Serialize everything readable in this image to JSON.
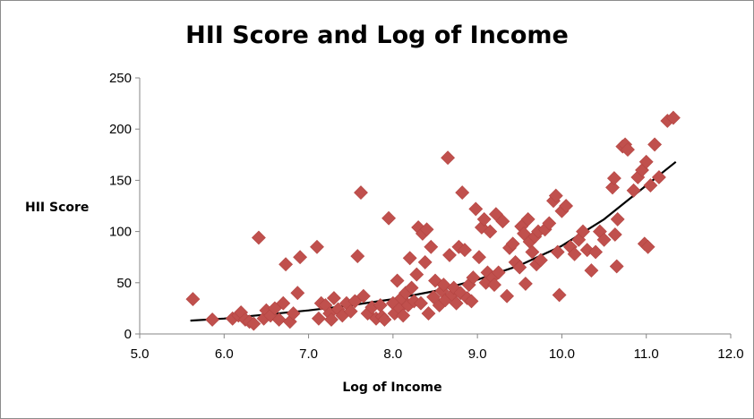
{
  "chart_data": {
    "type": "scatter",
    "title": "HII Score and Log of Income",
    "xlabel": "Log of Income",
    "ylabel": "HII Score",
    "xlim": [
      5.0,
      12.0
    ],
    "ylim": [
      0,
      250
    ],
    "x_ticks": [
      "5.0",
      "6.0",
      "7.0",
      "8.0",
      "9.0",
      "10.0",
      "11.0",
      "12.0"
    ],
    "y_ticks": [
      "0",
      "50",
      "100",
      "150",
      "200",
      "250"
    ],
    "grid": false,
    "legend": "none",
    "marker": "diamond",
    "marker_color": "#c0504d",
    "trendline": {
      "type": "exponential",
      "x_range": [
        5.6,
        11.35
      ],
      "color": "#000000",
      "points": [
        [
          5.6,
          13
        ],
        [
          6.0,
          15
        ],
        [
          6.5,
          19
        ],
        [
          7.0,
          23
        ],
        [
          7.5,
          28
        ],
        [
          8.0,
          34
        ],
        [
          8.5,
          42
        ],
        [
          9.0,
          53
        ],
        [
          9.5,
          67
        ],
        [
          10.0,
          86
        ],
        [
          10.5,
          112
        ],
        [
          11.0,
          145
        ],
        [
          11.35,
          168
        ]
      ]
    },
    "points": [
      [
        5.63,
        34
      ],
      [
        5.86,
        14
      ],
      [
        6.1,
        15
      ],
      [
        6.17,
        18
      ],
      [
        6.2,
        21
      ],
      [
        6.25,
        14
      ],
      [
        6.3,
        12
      ],
      [
        6.35,
        10
      ],
      [
        6.41,
        94
      ],
      [
        6.47,
        15
      ],
      [
        6.5,
        23
      ],
      [
        6.55,
        18
      ],
      [
        6.6,
        25
      ],
      [
        6.65,
        14
      ],
      [
        6.7,
        30
      ],
      [
        6.73,
        68
      ],
      [
        6.78,
        12
      ],
      [
        6.82,
        20
      ],
      [
        6.87,
        40
      ],
      [
        6.9,
        75
      ],
      [
        7.1,
        85
      ],
      [
        7.12,
        15
      ],
      [
        7.15,
        30
      ],
      [
        7.2,
        28
      ],
      [
        7.25,
        20
      ],
      [
        7.27,
        14
      ],
      [
        7.3,
        35
      ],
      [
        7.35,
        24
      ],
      [
        7.4,
        18
      ],
      [
        7.45,
        30
      ],
      [
        7.5,
        22
      ],
      [
        7.55,
        32
      ],
      [
        7.58,
        76
      ],
      [
        7.62,
        138
      ],
      [
        7.65,
        37
      ],
      [
        7.7,
        20
      ],
      [
        7.75,
        26
      ],
      [
        7.8,
        15
      ],
      [
        7.85,
        28
      ],
      [
        7.87,
        17
      ],
      [
        7.9,
        14
      ],
      [
        7.95,
        113
      ],
      [
        8.0,
        30
      ],
      [
        8.02,
        20
      ],
      [
        8.05,
        52
      ],
      [
        8.08,
        25
      ],
      [
        8.1,
        35
      ],
      [
        8.12,
        18
      ],
      [
        8.15,
        40
      ],
      [
        8.18,
        28
      ],
      [
        8.2,
        74
      ],
      [
        8.22,
        45
      ],
      [
        8.25,
        32
      ],
      [
        8.28,
        58
      ],
      [
        8.3,
        104
      ],
      [
        8.33,
        30
      ],
      [
        8.35,
        98
      ],
      [
        8.38,
        70
      ],
      [
        8.4,
        102
      ],
      [
        8.42,
        20
      ],
      [
        8.45,
        85
      ],
      [
        8.48,
        36
      ],
      [
        8.5,
        52
      ],
      [
        8.55,
        28
      ],
      [
        8.58,
        42
      ],
      [
        8.6,
        48
      ],
      [
        8.62,
        33
      ],
      [
        8.65,
        172
      ],
      [
        8.67,
        77
      ],
      [
        8.7,
        38
      ],
      [
        8.72,
        45
      ],
      [
        8.75,
        30
      ],
      [
        8.78,
        85
      ],
      [
        8.8,
        40
      ],
      [
        8.82,
        138
      ],
      [
        8.85,
        82
      ],
      [
        8.88,
        35
      ],
      [
        8.9,
        48
      ],
      [
        8.93,
        32
      ],
      [
        8.95,
        55
      ],
      [
        8.98,
        122
      ],
      [
        9.02,
        75
      ],
      [
        9.05,
        104
      ],
      [
        9.08,
        112
      ],
      [
        9.1,
        50
      ],
      [
        9.12,
        60
      ],
      [
        9.15,
        100
      ],
      [
        9.18,
        55
      ],
      [
        9.2,
        48
      ],
      [
        9.22,
        117
      ],
      [
        9.25,
        60
      ],
      [
        9.3,
        110
      ],
      [
        9.35,
        37
      ],
      [
        9.38,
        84
      ],
      [
        9.42,
        88
      ],
      [
        9.45,
        70
      ],
      [
        9.5,
        65
      ],
      [
        9.52,
        105
      ],
      [
        9.55,
        98
      ],
      [
        9.57,
        49
      ],
      [
        9.6,
        112
      ],
      [
        9.62,
        90
      ],
      [
        9.65,
        80
      ],
      [
        9.68,
        95
      ],
      [
        9.7,
        68
      ],
      [
        9.72,
        100
      ],
      [
        9.75,
        72
      ],
      [
        9.8,
        102
      ],
      [
        9.85,
        108
      ],
      [
        9.9,
        130
      ],
      [
        9.93,
        135
      ],
      [
        9.95,
        80
      ],
      [
        9.97,
        38
      ],
      [
        10.0,
        120
      ],
      [
        10.05,
        125
      ],
      [
        10.1,
        85
      ],
      [
        10.15,
        78
      ],
      [
        10.2,
        92
      ],
      [
        10.25,
        100
      ],
      [
        10.3,
        82
      ],
      [
        10.35,
        62
      ],
      [
        10.4,
        80
      ],
      [
        10.45,
        100
      ],
      [
        10.5,
        92
      ],
      [
        10.6,
        143
      ],
      [
        10.62,
        152
      ],
      [
        10.63,
        97
      ],
      [
        10.65,
        66
      ],
      [
        10.66,
        112
      ],
      [
        10.72,
        183
      ],
      [
        10.75,
        185
      ],
      [
        10.78,
        180
      ],
      [
        10.85,
        140
      ],
      [
        10.9,
        153
      ],
      [
        10.95,
        160
      ],
      [
        10.98,
        88
      ],
      [
        11.0,
        168
      ],
      [
        11.02,
        85
      ],
      [
        11.05,
        145
      ],
      [
        11.1,
        185
      ],
      [
        11.15,
        153
      ],
      [
        11.25,
        208
      ],
      [
        11.32,
        211
      ]
    ]
  }
}
